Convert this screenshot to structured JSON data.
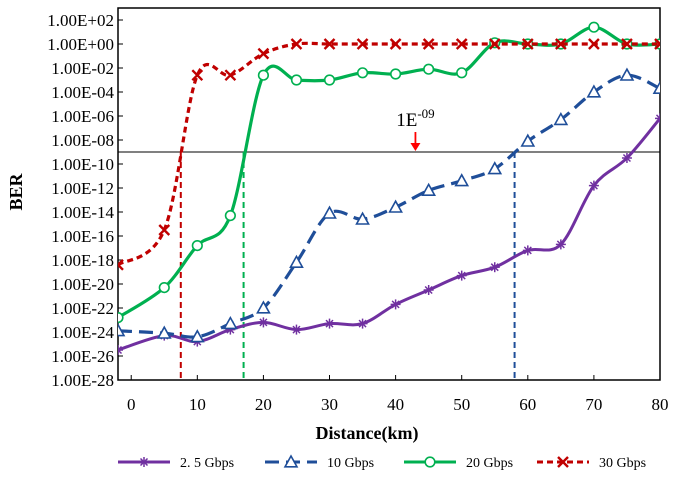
{
  "chart_data": {
    "type": "line",
    "xlabel": "Distance(km)",
    "ylabel": "BER",
    "xlim": [
      -2,
      80
    ],
    "ylim_log10": [
      -28,
      3
    ],
    "x_ticks": [
      0,
      10,
      20,
      30,
      40,
      50,
      60,
      70,
      80
    ],
    "x_tick_labels": [
      "0",
      "10",
      "20",
      "30",
      "40",
      "50",
      "60",
      "70",
      "80"
    ],
    "y_ticks_log10": [
      2,
      0,
      -2,
      -4,
      -6,
      -8,
      -10,
      -12,
      -14,
      -16,
      -18,
      -20,
      -22,
      -24,
      -26,
      -28
    ],
    "y_tick_labels": [
      "1.00E+02",
      "1.00E+00",
      "1.00E-02",
      "1.00E-04",
      "1.00E-06",
      "1.00E-08",
      "1.00E-10",
      "1.00E-12",
      "1.00E-14",
      "1.00E-16",
      "1.00E-18",
      "1.00E-20",
      "1.00E-22",
      "1.00E-24",
      "1.00E-26",
      "1.00E-28"
    ],
    "grid": false,
    "legend_position": "bottom",
    "threshold": {
      "label_base": "1E",
      "label_exp": "-09",
      "log10_value": -9,
      "label_x": 43,
      "arrow_x": 43,
      "color": "#ff0000"
    },
    "series": [
      {
        "name": "2. 5 Gbps",
        "color": "#7030a0",
        "marker": "asterisk",
        "dash": "solid",
        "cutoff_km": null,
        "x": [
          -2,
          5,
          10,
          15,
          20,
          25,
          30,
          35,
          40,
          45,
          50,
          55,
          60,
          65,
          70,
          75,
          80
        ],
        "log10_ber": [
          -25.5,
          -24.3,
          -24.8,
          -23.8,
          -23.2,
          -23.8,
          -23.3,
          -23.3,
          -21.7,
          -20.5,
          -19.3,
          -18.6,
          -17.2,
          -16.7,
          -11.8,
          -9.5,
          -6.2
        ]
      },
      {
        "name": "10 Gbps",
        "color": "#1f4e99",
        "marker": "triangle",
        "dash": "long-dash",
        "cutoff_km": 58,
        "x": [
          -2,
          5,
          10,
          15,
          20,
          25,
          30,
          35,
          40,
          45,
          50,
          55,
          60,
          65,
          70,
          75,
          80
        ],
        "log10_ber": [
          -23.9,
          -24.1,
          -24.4,
          -23.3,
          -22.0,
          -18.2,
          -14.1,
          -14.6,
          -13.6,
          -12.2,
          -11.4,
          -10.4,
          -8.1,
          -6.3,
          -4.0,
          -2.6,
          -3.7
        ]
      },
      {
        "name": "20 Gbps",
        "color": "#00b050",
        "marker": "circle",
        "dash": "solid",
        "cutoff_km": 17,
        "x": [
          -2,
          5,
          10,
          15,
          20,
          25,
          30,
          35,
          40,
          45,
          50,
          55,
          60,
          65,
          70,
          75,
          80
        ],
        "log10_ber": [
          -22.8,
          -20.3,
          -16.8,
          -14.3,
          -2.6,
          -3.0,
          -3.0,
          -2.4,
          -2.5,
          -2.1,
          -2.4,
          0.1,
          0.0,
          0.0,
          1.4,
          0.0,
          0.0
        ]
      },
      {
        "name": "30 Gbps",
        "color": "#c00000",
        "marker": "x",
        "dash": "short-dash",
        "cutoff_km": 7.5,
        "x": [
          -2,
          5,
          10,
          15,
          20,
          25,
          30,
          35,
          40,
          45,
          50,
          55,
          60,
          65,
          70,
          75,
          80
        ],
        "log10_ber": [
          -18.4,
          -15.5,
          -2.6,
          -2.6,
          -0.8,
          0.0,
          0.0,
          0.0,
          0.0,
          0.0,
          0.0,
          0.0,
          0.0,
          0.0,
          0.0,
          0.0,
          0.0
        ]
      }
    ]
  }
}
